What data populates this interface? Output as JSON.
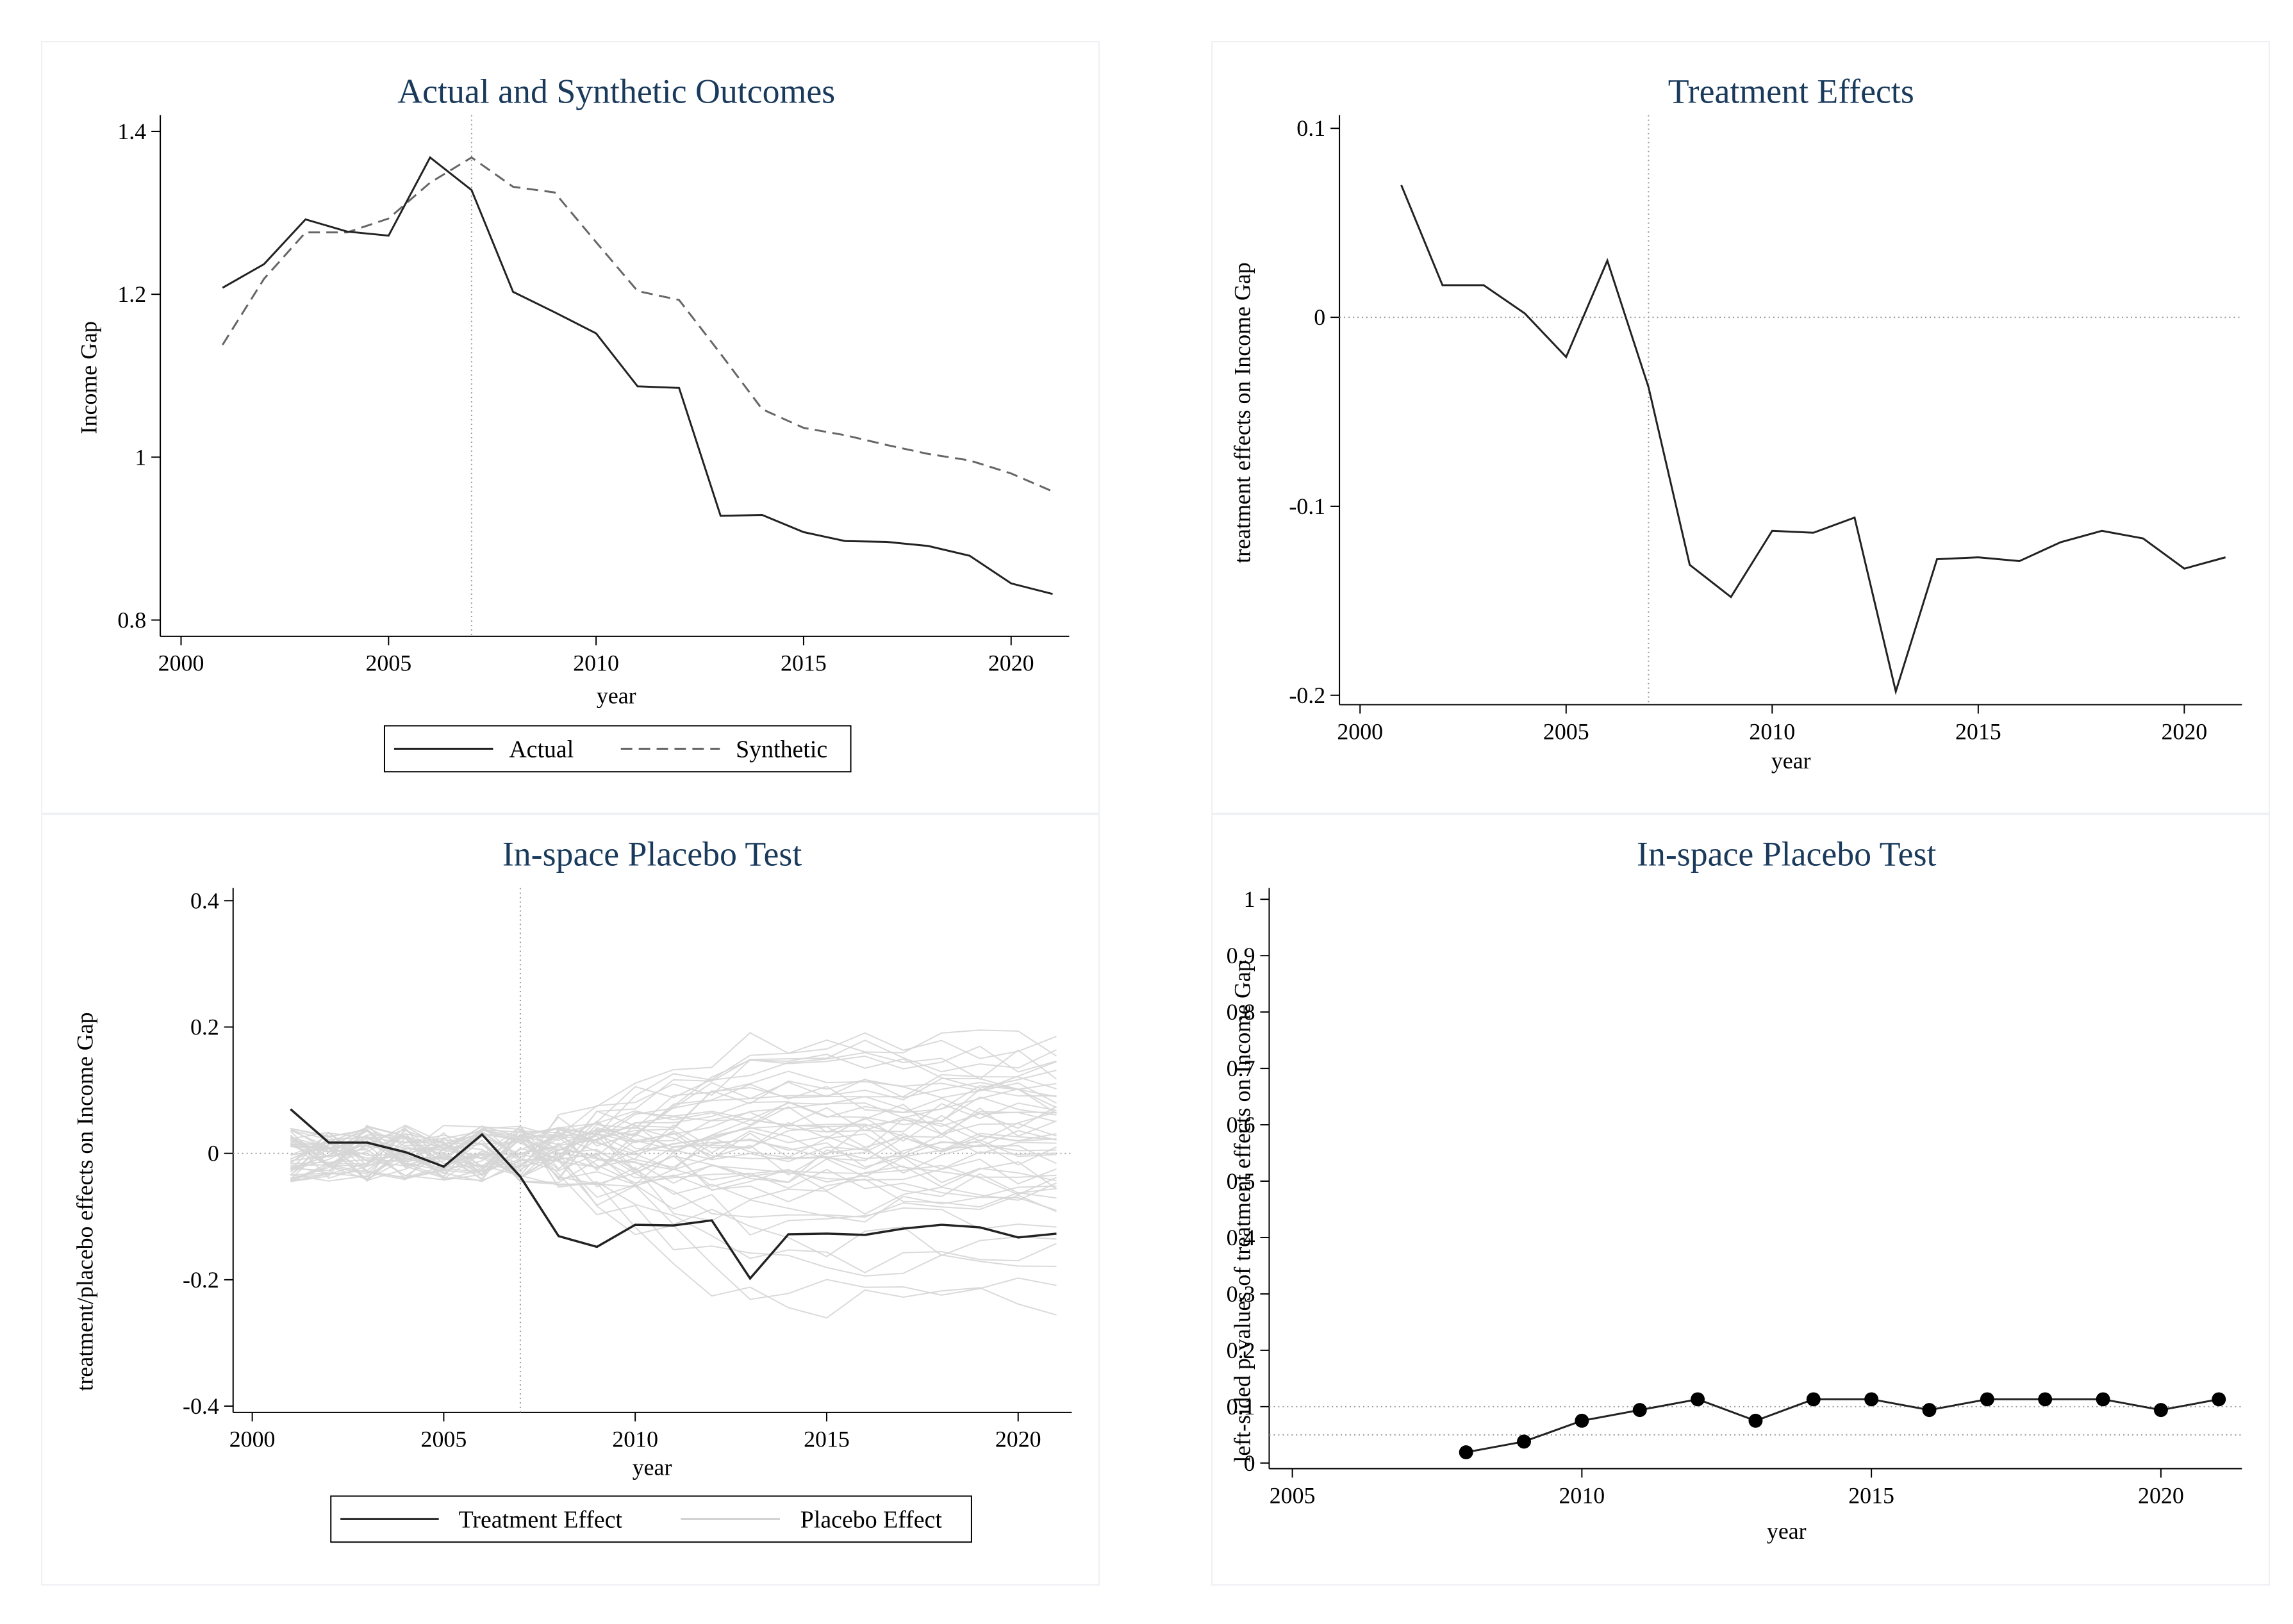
{
  "colors": {
    "title": "#1a3a5c",
    "actual": "#222222",
    "synthetic": "#666666",
    "placebo": "#d6d6d6",
    "refline": "#999999",
    "panel_border": "#eef0f3"
  },
  "chart_data": [
    {
      "type": "line",
      "title": "Actual and Synthetic Outcomes",
      "xlabel": "year",
      "ylabel": "Income Gap",
      "xlim": [
        1999.5,
        2021.4
      ],
      "ylim": [
        0.78,
        1.42
      ],
      "xticks": [
        2000,
        2005,
        2010,
        2015,
        2020
      ],
      "xtick_labels": [
        "2000",
        "2005",
        "2010",
        "2015",
        "2020"
      ],
      "yticks": [
        0.8,
        1.0,
        1.2,
        1.4
      ],
      "ytick_labels": [
        "0.8",
        "1",
        "1.2",
        "1.4"
      ],
      "vline": 2007,
      "legend": {
        "position": "bottom",
        "entries": [
          "Actual",
          "Synthetic"
        ]
      },
      "x": [
        2001,
        2002,
        2003,
        2004,
        2005,
        2006,
        2007,
        2008,
        2009,
        2010,
        2011,
        2012,
        2013,
        2014,
        2015,
        2016,
        2017,
        2018,
        2019,
        2020,
        2021
      ],
      "series": [
        {
          "name": "Actual",
          "style": "solid",
          "values": [
            1.208,
            1.237,
            1.292,
            1.277,
            1.272,
            1.368,
            1.328,
            1.203,
            1.178,
            1.152,
            1.087,
            1.085,
            0.928,
            0.929,
            0.908,
            0.897,
            0.896,
            0.891,
            0.879,
            0.845,
            0.832
          ]
        },
        {
          "name": "Synthetic",
          "style": "dashed",
          "values": [
            1.138,
            1.219,
            1.276,
            1.276,
            1.293,
            1.337,
            1.368,
            1.332,
            1.325,
            1.264,
            1.204,
            1.193,
            1.127,
            1.059,
            1.036,
            1.027,
            1.015,
            1.004,
            0.996,
            0.98,
            0.958
          ]
        }
      ]
    },
    {
      "type": "line",
      "title": "Treatment Effects",
      "xlabel": "year",
      "ylabel": "treatment effects on Income Gap",
      "xlim": [
        1999.5,
        2021.4
      ],
      "ylim": [
        -0.205,
        0.107
      ],
      "xticks": [
        2000,
        2005,
        2010,
        2015,
        2020
      ],
      "xtick_labels": [
        "2000",
        "2005",
        "2010",
        "2015",
        "2020"
      ],
      "yticks": [
        -0.2,
        -0.1,
        0,
        0.1
      ],
      "ytick_labels": [
        "-0.2",
        "-0.1",
        "0",
        "0.1"
      ],
      "vline": 2007,
      "hline": 0,
      "x": [
        2001,
        2002,
        2003,
        2004,
        2005,
        2006,
        2007,
        2008,
        2009,
        2010,
        2011,
        2012,
        2013,
        2014,
        2015,
        2016,
        2017,
        2018,
        2019,
        2020,
        2021
      ],
      "series": [
        {
          "name": "Treatment Effect",
          "values": [
            0.07,
            0.017,
            0.017,
            0.002,
            -0.021,
            0.03,
            -0.037,
            -0.131,
            -0.148,
            -0.113,
            -0.114,
            -0.106,
            -0.198,
            -0.128,
            -0.127,
            -0.129,
            -0.119,
            -0.113,
            -0.117,
            -0.133,
            -0.127
          ]
        }
      ]
    },
    {
      "type": "line",
      "title": "In-space Placebo Test",
      "xlabel": "year",
      "ylabel": "treatment/placebo effects on Income Gap",
      "xlim": [
        1999.5,
        2021.4
      ],
      "ylim": [
        -0.41,
        0.42
      ],
      "xticks": [
        2000,
        2005,
        2010,
        2015,
        2020
      ],
      "xtick_labels": [
        "2000",
        "2005",
        "2010",
        "2015",
        "2020"
      ],
      "yticks": [
        -0.4,
        -0.2,
        0,
        0.2,
        0.4
      ],
      "ytick_labels": [
        "-0.4",
        "-0.2",
        "0",
        "0.2",
        "0.4"
      ],
      "vline": 2007,
      "hline": 0,
      "legend": {
        "position": "bottom",
        "entries": [
          "Treatment Effect",
          "Placebo Effect"
        ]
      },
      "x": [
        2001,
        2002,
        2003,
        2004,
        2005,
        2006,
        2007,
        2008,
        2009,
        2010,
        2011,
        2012,
        2013,
        2014,
        2015,
        2016,
        2017,
        2018,
        2019,
        2020,
        2021
      ],
      "treatment": {
        "name": "Treatment Effect",
        "values": [
          0.07,
          0.017,
          0.017,
          0.002,
          -0.021,
          0.03,
          -0.037,
          -0.131,
          -0.148,
          -0.113,
          -0.114,
          -0.106,
          -0.198,
          -0.128,
          -0.127,
          -0.129,
          -0.119,
          -0.113,
          -0.117,
          -0.133,
          -0.127
        ]
      },
      "placebo_endpoints": [
        0.175,
        0.165,
        0.155,
        0.145,
        0.14,
        0.13,
        0.12,
        0.11,
        0.1,
        0.095,
        0.09,
        0.085,
        0.08,
        0.075,
        0.07,
        0.065,
        0.06,
        0.055,
        0.05,
        0.045,
        0.04,
        0.035,
        0.03,
        0.025,
        0.02,
        0.015,
        0.01,
        0.005,
        0.0,
        -0.005,
        -0.01,
        -0.015,
        -0.02,
        -0.025,
        -0.03,
        -0.035,
        -0.04,
        -0.045,
        -0.05,
        -0.06,
        -0.07,
        -0.08,
        -0.095,
        -0.11,
        -0.14,
        -0.165,
        -0.18,
        -0.215,
        -0.235
      ]
    },
    {
      "type": "line",
      "title": "In-space Placebo Test",
      "xlabel": "year",
      "ylabel": "left-sided p-values of treatment effects on Income Gap",
      "xlim": [
        2004.6,
        2021.4
      ],
      "ylim": [
        -0.01,
        1.02
      ],
      "xticks": [
        2005,
        2010,
        2015,
        2020
      ],
      "xtick_labels": [
        "2005",
        "2010",
        "2015",
        "2020"
      ],
      "yticks": [
        0,
        0.1,
        0.2,
        0.3,
        0.4,
        0.5,
        0.6,
        0.7,
        0.8,
        0.9,
        1
      ],
      "ytick_labels": [
        "0",
        "0.1",
        "0.2",
        "0.3",
        "0.4",
        "0.5",
        "0.6",
        "0.7",
        "0.8",
        "0.9",
        "1"
      ],
      "hlines": [
        0.05,
        0.1
      ],
      "x": [
        2008,
        2009,
        2010,
        2011,
        2012,
        2013,
        2014,
        2015,
        2016,
        2017,
        2018,
        2019,
        2020,
        2021
      ],
      "series": [
        {
          "name": "p-value",
          "markers": true,
          "values": [
            0.019,
            0.038,
            0.075,
            0.094,
            0.113,
            0.075,
            0.113,
            0.113,
            0.094,
            0.113,
            0.113,
            0.113,
            0.094,
            0.113
          ]
        }
      ]
    }
  ]
}
